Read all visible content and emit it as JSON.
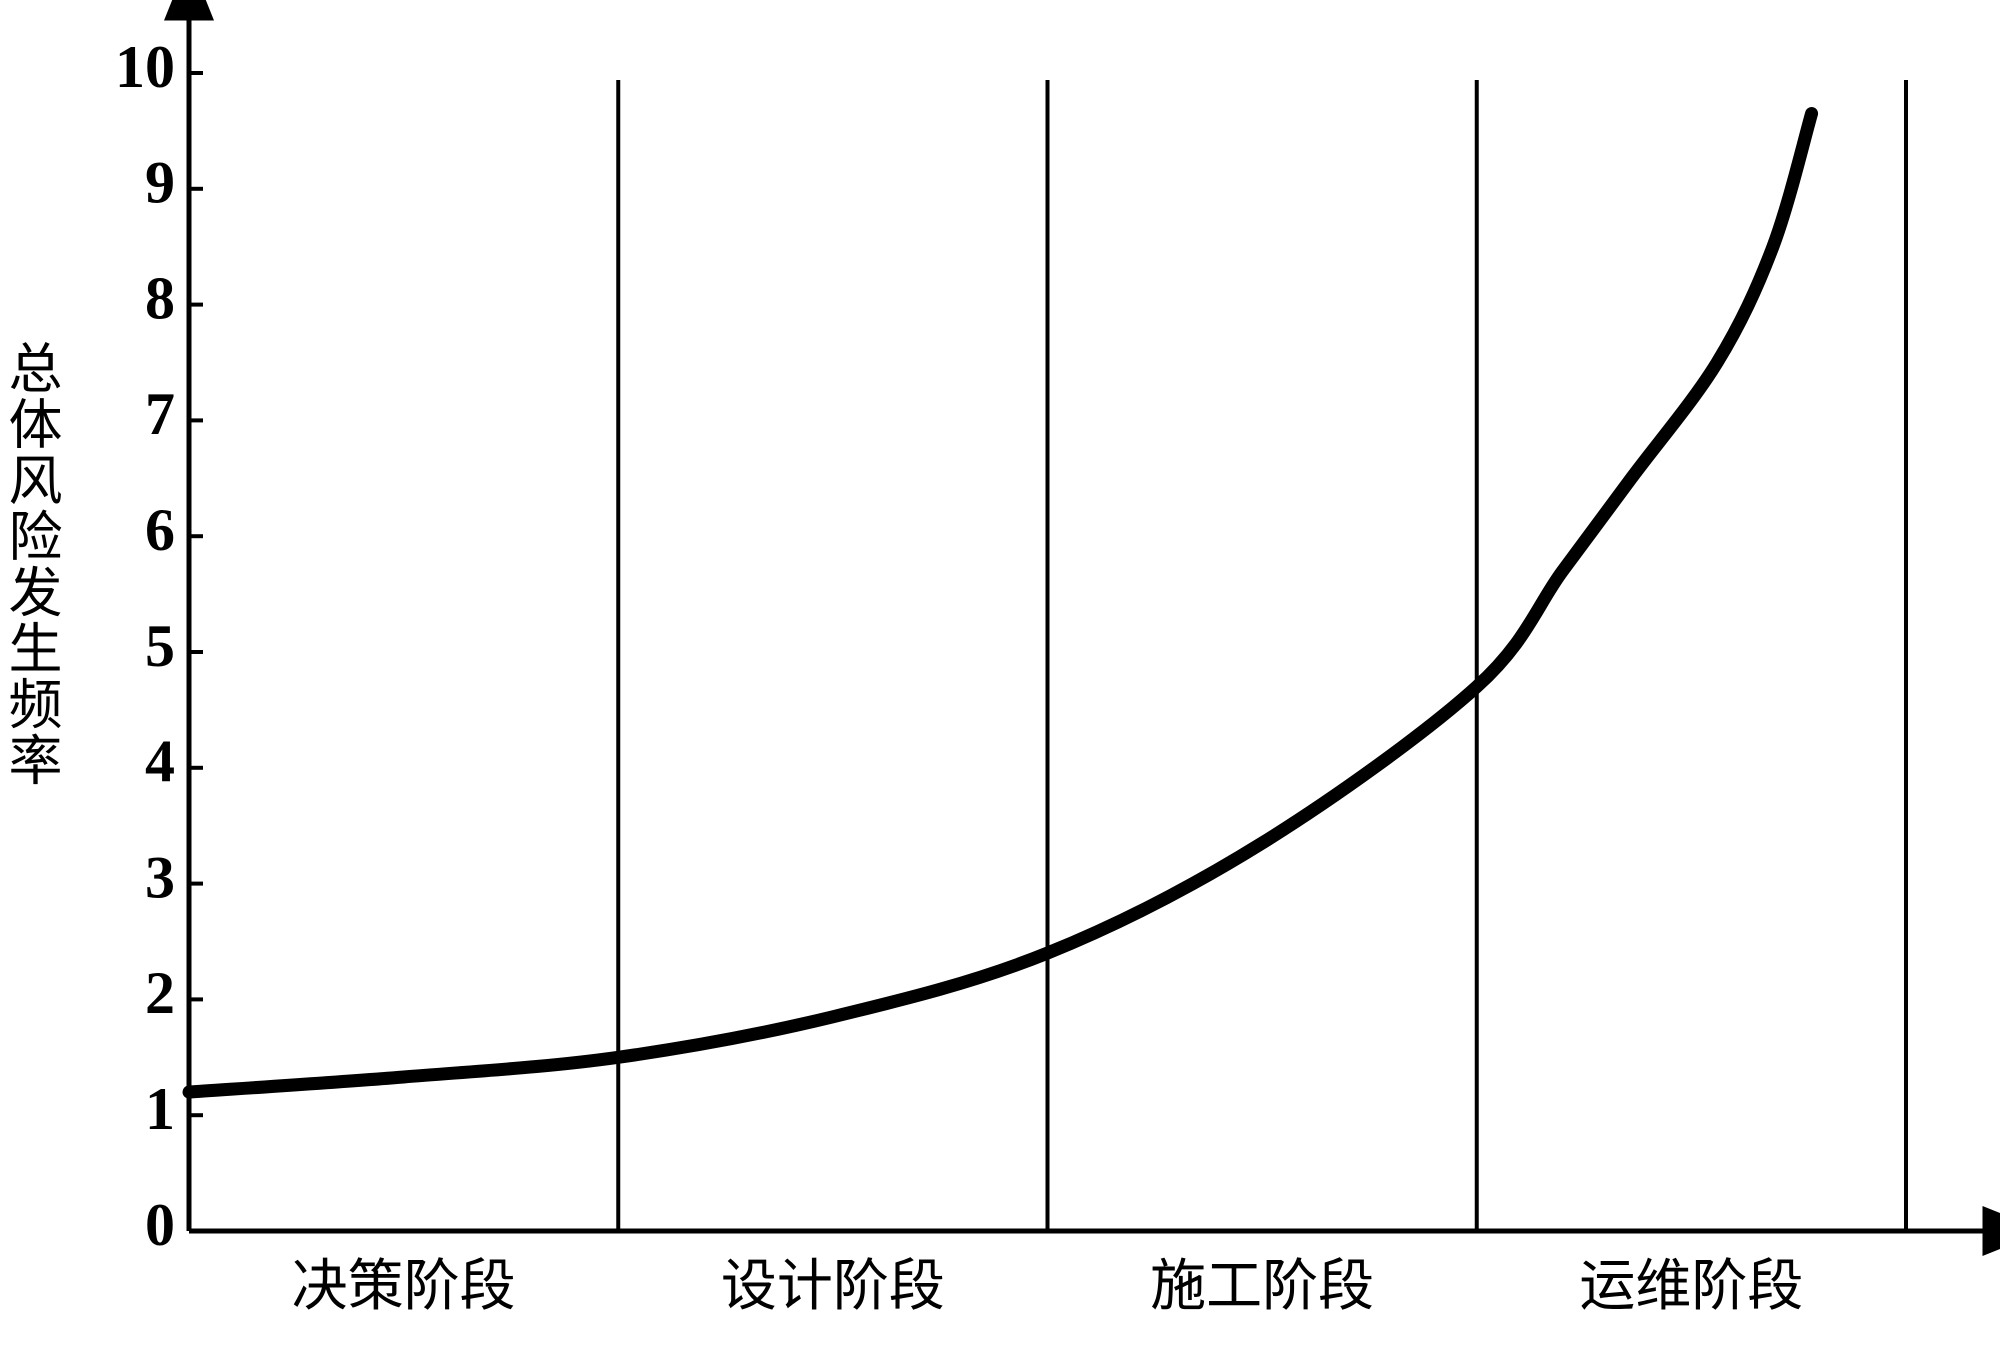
{
  "chart_data": {
    "type": "line",
    "y_label": "总体风险发生频率",
    "categories": [
      "决策阶段",
      "设计阶段",
      "施工阶段",
      "运维阶段"
    ],
    "xlim": [
      0,
      4
    ],
    "ylim": [
      0,
      10
    ],
    "yticks": [
      0,
      1,
      2,
      3,
      4,
      5,
      6,
      7,
      8,
      9,
      10
    ],
    "x": [
      0,
      0.5,
      1,
      1.5,
      2,
      2.5,
      3,
      3.2,
      3.36,
      3.56,
      3.69,
      3.78
    ],
    "values": [
      1.2,
      1.33,
      1.5,
      1.85,
      2.4,
      3.35,
      4.7,
      5.7,
      6.5,
      7.5,
      8.5,
      9.65
    ],
    "color": "#000000"
  }
}
